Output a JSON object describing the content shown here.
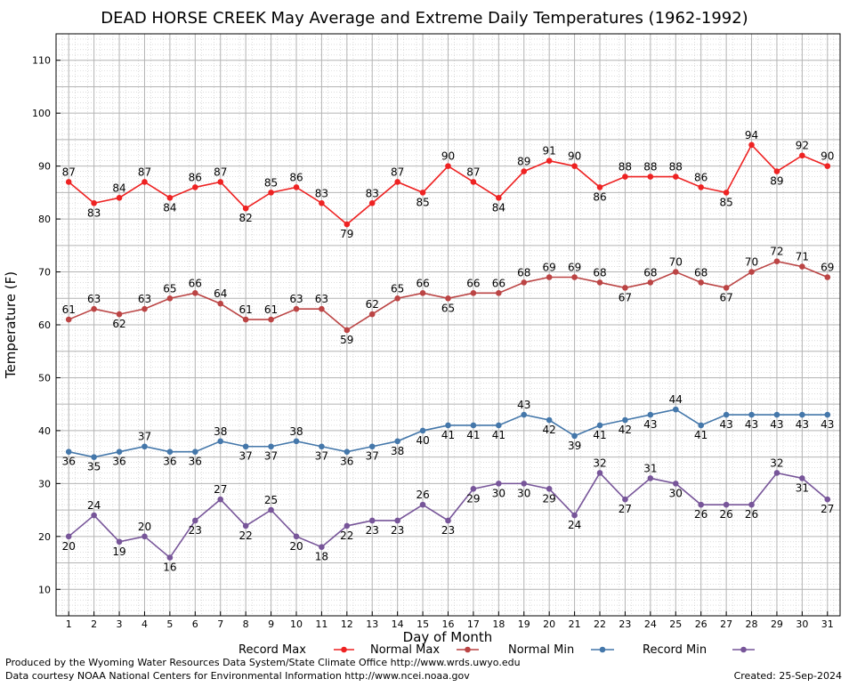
{
  "chart_data": {
    "type": "line",
    "title": "DEAD HORSE CREEK May Average and Extreme Daily Temperatures (1962-1992)",
    "xlabel": "Day of Month",
    "ylabel": "Temperature (F)",
    "ylim": [
      5,
      115
    ],
    "xlim": [
      0.5,
      31.5
    ],
    "yticks": [
      10,
      20,
      30,
      40,
      50,
      60,
      70,
      80,
      90,
      100,
      110
    ],
    "x": [
      1,
      2,
      3,
      4,
      5,
      6,
      7,
      8,
      9,
      10,
      11,
      12,
      13,
      14,
      15,
      16,
      17,
      18,
      19,
      20,
      21,
      22,
      23,
      24,
      25,
      26,
      27,
      28,
      29,
      30,
      31
    ],
    "grid": true,
    "legend_position": "bottom",
    "series": [
      {
        "name": "Record Max",
        "color": "#ee2222",
        "values": [
          87,
          83,
          84,
          87,
          84,
          86,
          87,
          82,
          85,
          86,
          83,
          79,
          83,
          87,
          85,
          90,
          87,
          84,
          89,
          91,
          90,
          86,
          88,
          88,
          88,
          86,
          85,
          94,
          89,
          92,
          90
        ]
      },
      {
        "name": "Normal Max",
        "color": "#bb4444",
        "values": [
          61,
          63,
          62,
          63,
          65,
          66,
          64,
          61,
          61,
          63,
          63,
          59,
          62,
          65,
          66,
          65,
          66,
          66,
          68,
          69,
          69,
          68,
          67,
          68,
          70,
          68,
          67,
          70,
          72,
          71,
          69
        ]
      },
      {
        "name": "Normal Min",
        "color": "#4477aa",
        "values": [
          36,
          35,
          36,
          37,
          36,
          36,
          38,
          37,
          37,
          38,
          37,
          36,
          37,
          38,
          40,
          41,
          41,
          41,
          43,
          42,
          39,
          41,
          42,
          43,
          44,
          41,
          43,
          43,
          43,
          43,
          43
        ]
      },
      {
        "name": "Record Min",
        "color": "#775599",
        "values": [
          20,
          24,
          19,
          20,
          16,
          23,
          27,
          22,
          25,
          20,
          18,
          22,
          23,
          23,
          26,
          23,
          29,
          30,
          30,
          29,
          24,
          32,
          27,
          31,
          30,
          26,
          26,
          26,
          32,
          31,
          27
        ]
      }
    ]
  },
  "footer": {
    "left_line1": "Produced by the Wyoming Water Resources Data System/State Climate Office http://www.wrds.uwyo.edu",
    "left_line2": "Data courtesy NOAA National Centers for Environmental Information http://www.ncei.noaa.gov",
    "created": "Created:  25-Sep-2024"
  }
}
